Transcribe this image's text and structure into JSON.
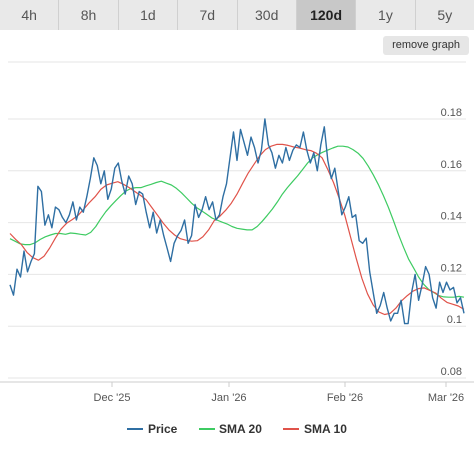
{
  "toolbar": {
    "tabs": [
      {
        "label": "4h",
        "active": false
      },
      {
        "label": "8h",
        "active": false
      },
      {
        "label": "1d",
        "active": false
      },
      {
        "label": "7d",
        "active": false
      },
      {
        "label": "30d",
        "active": false
      },
      {
        "label": "120d",
        "active": true
      },
      {
        "label": "1y",
        "active": false
      },
      {
        "label": "5y",
        "active": false
      }
    ],
    "remove_graph_label": "remove graph"
  },
  "colors": {
    "price": "#2f6fa3",
    "sma20": "#3ecb62",
    "sma10": "#e0534a",
    "grid": "#e6e6e6",
    "tab_active_bg": "#c8c8c8",
    "tab_bg": "#e9e9e9"
  },
  "chart_data": {
    "type": "line",
    "x_labels": [
      "Dec '25",
      "Jan '26",
      "Feb '26",
      "Mar '26"
    ],
    "y_ticks": [
      0.08,
      0.1,
      0.12,
      0.14,
      0.16,
      0.18
    ],
    "y_tick_labels": [
      "0.08",
      "0.1",
      "0.12",
      "0.14",
      "0.16",
      "0.18"
    ],
    "ylim": [
      0.075,
      0.19
    ],
    "grid": true,
    "legend_position": "bottom",
    "series": [
      {
        "name": "Price",
        "values": [
          0.116,
          0.112,
          0.122,
          0.119,
          0.129,
          0.121,
          0.125,
          0.128,
          0.154,
          0.152,
          0.139,
          0.143,
          0.138,
          0.146,
          0.145,
          0.142,
          0.14,
          0.143,
          0.148,
          0.141,
          0.146,
          0.144,
          0.15,
          0.157,
          0.165,
          0.162,
          0.155,
          0.16,
          0.149,
          0.153,
          0.161,
          0.163,
          0.156,
          0.151,
          0.158,
          0.155,
          0.147,
          0.152,
          0.151,
          0.144,
          0.138,
          0.144,
          0.136,
          0.141,
          0.135,
          0.13,
          0.125,
          0.132,
          0.135,
          0.137,
          0.141,
          0.132,
          0.135,
          0.147,
          0.142,
          0.145,
          0.15,
          0.145,
          0.148,
          0.141,
          0.143,
          0.15,
          0.155,
          0.165,
          0.175,
          0.164,
          0.176,
          0.171,
          0.166,
          0.173,
          0.169,
          0.163,
          0.168,
          0.18,
          0.17,
          0.167,
          0.161,
          0.166,
          0.163,
          0.169,
          0.164,
          0.168,
          0.17,
          0.169,
          0.175,
          0.168,
          0.163,
          0.167,
          0.16,
          0.17,
          0.177,
          0.164,
          0.157,
          0.161,
          0.152,
          0.143,
          0.146,
          0.15,
          0.142,
          0.143,
          0.133,
          0.132,
          0.134,
          0.121,
          0.113,
          0.105,
          0.108,
          0.113,
          0.107,
          0.102,
          0.105,
          0.105,
          0.11,
          0.101,
          0.101,
          0.113,
          0.12,
          0.11,
          0.116,
          0.123,
          0.12,
          0.111,
          0.107,
          0.117,
          0.113,
          0.117,
          0.114,
          0.115,
          0.109,
          0.111,
          0.105
        ]
      },
      {
        "name": "SMA 20",
        "values": [
          0.1338,
          0.1328,
          0.1318,
          0.1315,
          0.1315,
          0.1322,
          0.1335,
          0.1345,
          0.1352,
          0.1358,
          0.1358,
          0.1355,
          0.136,
          0.1358,
          0.1355,
          0.1352,
          0.1362,
          0.1385,
          0.1415,
          0.1442,
          0.1465,
          0.1485,
          0.1505,
          0.1522,
          0.1532,
          0.1535,
          0.1535,
          0.1542,
          0.1548,
          0.1555,
          0.156,
          0.1552,
          0.1545,
          0.1532,
          0.1515,
          0.1495,
          0.1475,
          0.1458,
          0.1445,
          0.1432,
          0.1418,
          0.141,
          0.1402,
          0.1395,
          0.1385,
          0.1378,
          0.1375,
          0.1372,
          0.1372,
          0.1385,
          0.1405,
          0.1428,
          0.1452,
          0.148,
          0.151,
          0.1535,
          0.1558,
          0.158,
          0.1605,
          0.163,
          0.165,
          0.1662,
          0.1672,
          0.168,
          0.1688,
          0.1695,
          0.1695,
          0.1692,
          0.1682,
          0.1668,
          0.1648,
          0.1618,
          0.1585,
          0.1548,
          0.1505,
          0.146,
          0.1408,
          0.1355,
          0.1305,
          0.126,
          0.1225,
          0.119,
          0.1162,
          0.1142,
          0.113,
          0.1118,
          0.1113,
          0.1112,
          0.1112,
          0.1115,
          0.1112
        ]
      },
      {
        "name": "SMA 10",
        "values": [
          0.1358,
          0.1335,
          0.1315,
          0.1285,
          0.1265,
          0.1255,
          0.127,
          0.1302,
          0.134,
          0.1375,
          0.1398,
          0.1412,
          0.1428,
          0.1452,
          0.1478,
          0.15,
          0.1528,
          0.1545,
          0.1552,
          0.1558,
          0.1548,
          0.1535,
          0.152,
          0.1505,
          0.1488,
          0.1458,
          0.1428,
          0.1398,
          0.1372,
          0.1352,
          0.1338,
          0.1332,
          0.1328,
          0.133,
          0.1345,
          0.1372,
          0.1408,
          0.1425,
          0.1448,
          0.1475,
          0.151,
          0.1552,
          0.1592,
          0.1625,
          0.1658,
          0.1682,
          0.1695,
          0.1702,
          0.1702,
          0.1698,
          0.1692,
          0.1688,
          0.1682,
          0.1678,
          0.1668,
          0.165,
          0.1605,
          0.1555,
          0.1495,
          0.1428,
          0.1345,
          0.1262,
          0.1185,
          0.1125,
          0.1082,
          0.1055,
          0.1045,
          0.105,
          0.107,
          0.1098,
          0.1118,
          0.1135,
          0.1145,
          0.1148,
          0.1138,
          0.1128,
          0.1108,
          0.1092,
          0.1085,
          0.1078,
          0.1065
        ]
      }
    ]
  }
}
